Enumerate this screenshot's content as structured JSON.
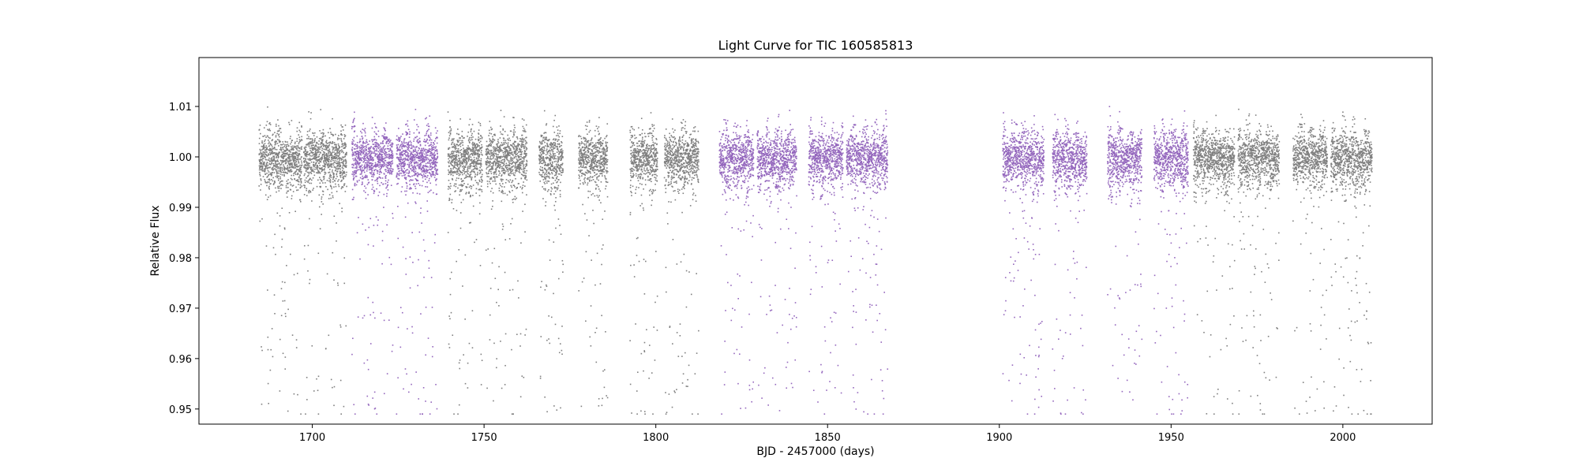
{
  "chart_data": {
    "type": "scatter",
    "title": "Light Curve for TIC 160585813",
    "xlabel": "BJD - 2457000 (days)",
    "ylabel": "Relative Flux",
    "xlim": [
      1667,
      2026
    ],
    "ylim": [
      0.947,
      1.0197
    ],
    "x_ticks": [
      1700,
      1750,
      1800,
      1850,
      1900,
      1950,
      2000
    ],
    "y_ticks": [
      0.95,
      0.96,
      0.97,
      0.98,
      0.99,
      1.0,
      1.01
    ],
    "y_tick_labels": [
      "0.95",
      "0.96",
      "0.97",
      "0.98",
      "0.99",
      "1.00",
      "1.01"
    ],
    "grid": false,
    "series": [
      {
        "color": "#7f7f7f",
        "segments": [
          {
            "x_start": 1684.5,
            "x_end": 1697.0
          },
          {
            "x_start": 1697.5,
            "x_end": 1710.0
          },
          {
            "x_start": 1739.5,
            "x_end": 1749.5
          },
          {
            "x_start": 1750.5,
            "x_end": 1762.5
          },
          {
            "x_start": 1766.0,
            "x_end": 1773.0
          },
          {
            "x_start": 1777.5,
            "x_end": 1786.0
          },
          {
            "x_start": 1792.5,
            "x_end": 1800.5
          },
          {
            "x_start": 1802.5,
            "x_end": 1812.5
          },
          {
            "x_start": 1956.5,
            "x_end": 1968.5
          },
          {
            "x_start": 1969.5,
            "x_end": 1981.5
          },
          {
            "x_start": 1985.5,
            "x_end": 1995.5
          },
          {
            "x_start": 1996.5,
            "x_end": 2008.5
          }
        ]
      },
      {
        "color": "#9467bd",
        "segments": [
          {
            "x_start": 1711.5,
            "x_end": 1723.5
          },
          {
            "x_start": 1724.5,
            "x_end": 1736.5
          },
          {
            "x_start": 1818.5,
            "x_end": 1828.5
          },
          {
            "x_start": 1829.5,
            "x_end": 1841.0
          },
          {
            "x_start": 1844.5,
            "x_end": 1854.5
          },
          {
            "x_start": 1855.5,
            "x_end": 1867.5
          },
          {
            "x_start": 1901.0,
            "x_end": 1913.0
          },
          {
            "x_start": 1915.5,
            "x_end": 1925.5
          },
          {
            "x_start": 1931.5,
            "x_end": 1941.5
          },
          {
            "x_start": 1945.0,
            "x_end": 1955.0
          }
        ]
      }
    ]
  }
}
